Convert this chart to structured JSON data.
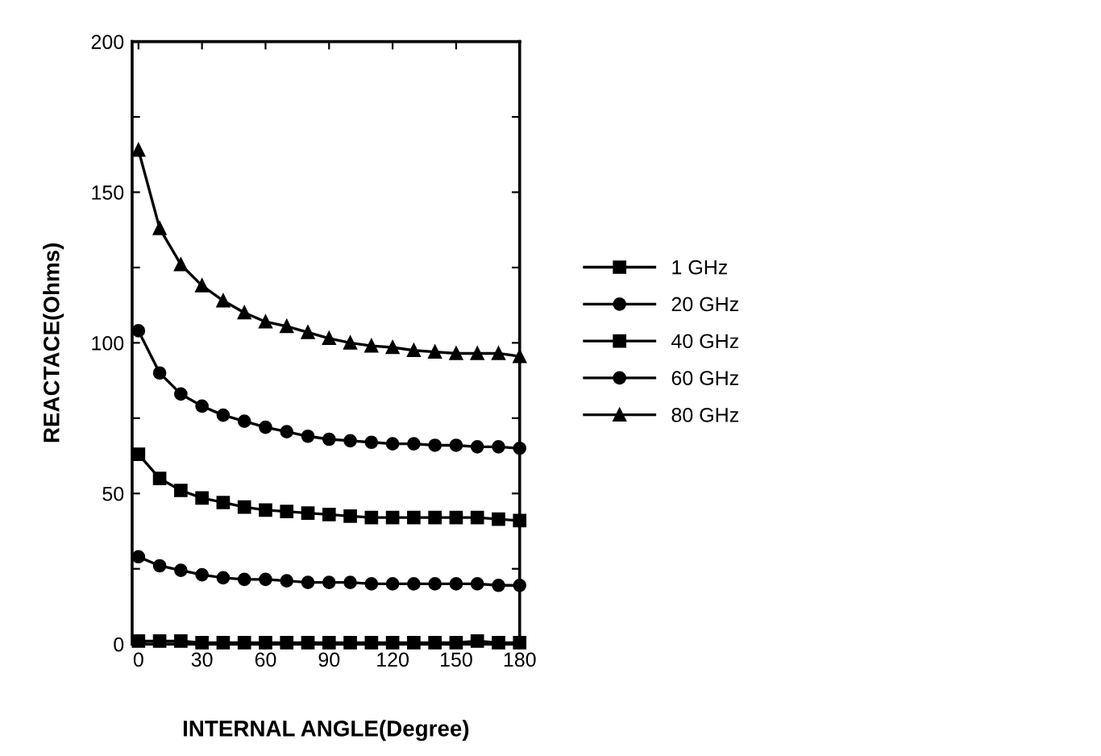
{
  "chart_data": {
    "type": "line",
    "xlabel": "INTERNAL ANGLE(Degree)",
    "ylabel": "REACTACE(Ohms)",
    "x": [
      0,
      10,
      20,
      30,
      40,
      50,
      60,
      70,
      80,
      90,
      100,
      110,
      120,
      130,
      140,
      150,
      160,
      170,
      180
    ],
    "xlim": [
      -3,
      180
    ],
    "ylim": [
      0,
      200
    ],
    "xticks": [
      0,
      30,
      60,
      90,
      120,
      150,
      180
    ],
    "yticks": [
      0,
      {
        "value": 25,
        "label": null
      },
      50,
      {
        "value": 75,
        "label": null
      },
      100,
      {
        "value": 125,
        "label": null
      },
      150,
      {
        "value": 175,
        "label": null
      },
      200
    ],
    "grid": false,
    "legend": "right",
    "line_style": "solid",
    "series": [
      {
        "name": "1 GHz",
        "color": "#000000",
        "marker": "square",
        "values": [
          1,
          1,
          1,
          0.5,
          0.5,
          0.5,
          0.5,
          0.5,
          0.5,
          0.5,
          0.5,
          0.5,
          0.5,
          0.5,
          0.5,
          0.5,
          1,
          0.5,
          0.5
        ]
      },
      {
        "name": "20 GHz",
        "color": "#000000",
        "marker": "circle",
        "values": [
          29,
          26,
          24.5,
          23,
          22,
          21.5,
          21.5,
          21,
          20.5,
          20.5,
          20.5,
          20,
          20,
          20,
          20,
          20,
          20,
          19.5,
          19.5
        ]
      },
      {
        "name": "40 GHz",
        "color": "#000000",
        "marker": "square",
        "values": [
          63,
          55,
          51,
          48.5,
          47,
          45.5,
          44.5,
          44,
          43.5,
          43,
          42.5,
          42,
          42,
          42,
          42,
          42,
          42,
          41.5,
          41
        ]
      },
      {
        "name": "60 GHz",
        "color": "#000000",
        "marker": "circle",
        "values": [
          104,
          90,
          83,
          79,
          76,
          74,
          72,
          70.5,
          69,
          68,
          67.5,
          67,
          66.5,
          66.5,
          66,
          66,
          65.5,
          65.5,
          65
        ]
      },
      {
        "name": "80 GHz",
        "color": "#000000",
        "marker": "triangle",
        "values": [
          164,
          138,
          126,
          119,
          114,
          110,
          107,
          105.5,
          103.5,
          101.5,
          100,
          99,
          98.5,
          97.5,
          97,
          96.5,
          96.5,
          96.5,
          95.5
        ]
      }
    ]
  }
}
